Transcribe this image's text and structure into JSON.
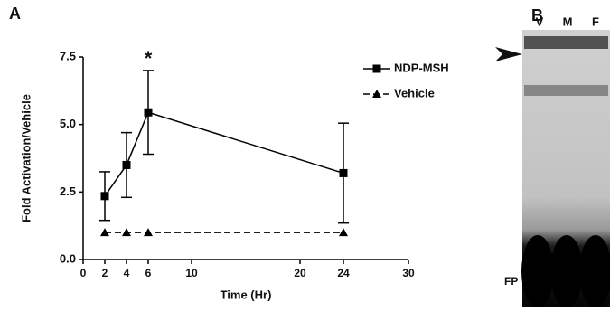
{
  "chart_data": {
    "type": "line",
    "panel_label": "A",
    "x_label": "Time (Hr)",
    "y_label": "Fold  Activation/Vehicle",
    "x": [
      2,
      4,
      6,
      24
    ],
    "series": [
      {
        "name": "NDP-MSH",
        "color": "#000000",
        "line_style": "solid",
        "marker": "square",
        "values": [
          2.35,
          3.5,
          5.45,
          3.2
        ],
        "errors": [
          0.9,
          1.2,
          1.55,
          1.85
        ]
      },
      {
        "name": "Vehicle",
        "color": "#000000",
        "line_style": "dashed",
        "marker": "triangle",
        "values": [
          1,
          1,
          1,
          1
        ]
      }
    ],
    "xlim": [
      0,
      30
    ],
    "xticks": [
      0,
      2,
      4,
      6,
      10,
      20,
      24,
      30
    ],
    "ylim": [
      0,
      7.5
    ],
    "yticks": [
      {
        "value": 0,
        "label": "0.0"
      },
      2.5,
      {
        "value": 5,
        "label": "5.0"
      },
      7.5
    ],
    "annotation": "*",
    "legend": "upper right"
  },
  "gel": {
    "panel_label": "B",
    "lanes": [
      "V",
      "M",
      "F"
    ],
    "label": "FP"
  }
}
